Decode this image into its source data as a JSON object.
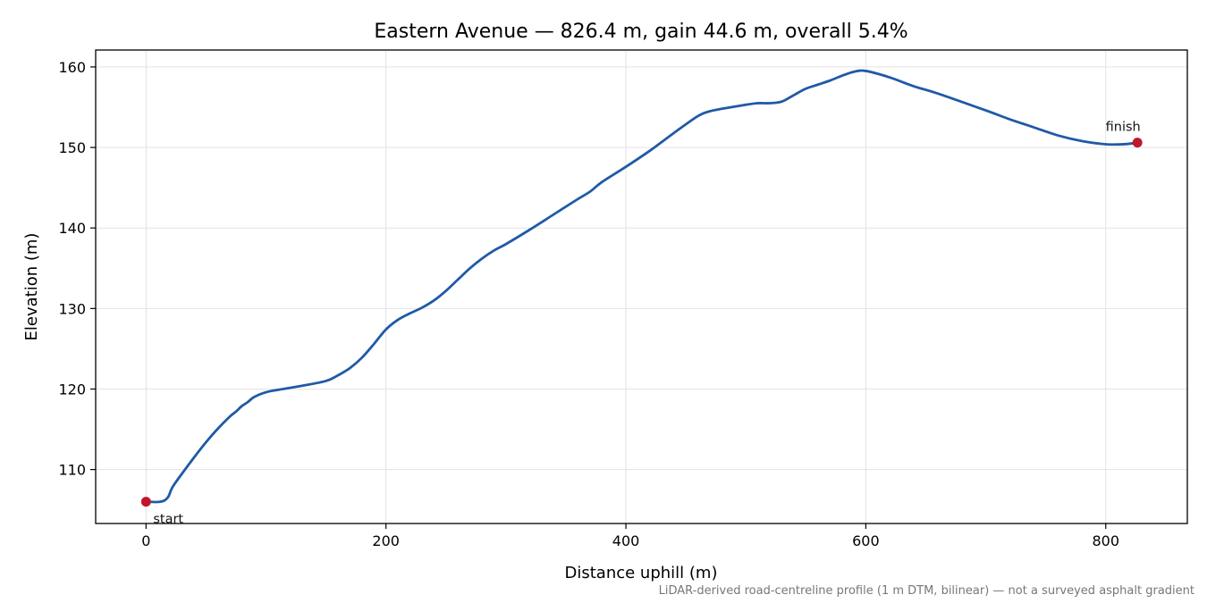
{
  "chart_data": {
    "type": "line",
    "title": "Eastern Avenue — 826.4 m, gain 44.6 m, overall 5.4%",
    "xlabel": "Distance uphill (m)",
    "ylabel": "Elevation (m)",
    "xlim": [
      -42,
      868
    ],
    "ylim": [
      103.3,
      162.1
    ],
    "xticks": [
      0,
      200,
      400,
      600,
      800
    ],
    "yticks": [
      110,
      120,
      130,
      140,
      150,
      160
    ],
    "grid": true,
    "line_color": "#1f5aa6",
    "marker_color": "#c0172b",
    "series": [
      {
        "x": [
          0,
          12,
          18,
          22,
          30,
          40,
          50,
          60,
          70,
          75,
          80,
          85,
          90,
          100,
          110,
          130,
          150,
          160,
          170,
          180,
          190,
          200,
          210,
          220,
          230,
          240,
          250,
          260,
          270,
          280,
          290,
          300,
          320,
          340,
          360,
          370,
          380,
          400,
          420,
          440,
          460,
          470,
          480,
          500,
          510,
          520,
          530,
          540,
          550,
          560,
          570,
          580,
          590,
          600,
          620,
          640,
          660,
          700,
          720,
          740,
          760,
          780,
          800,
          815,
          826.4
        ],
        "y": [
          106,
          106,
          106.5,
          107.8,
          109.5,
          111.5,
          113.4,
          115.1,
          116.6,
          117.2,
          117.9,
          118.4,
          119.0,
          119.6,
          119.9,
          120.4,
          121.0,
          121.7,
          122.6,
          123.9,
          125.6,
          127.4,
          128.6,
          129.4,
          130.1,
          131.0,
          132.2,
          133.6,
          135.0,
          136.2,
          137.2,
          138.0,
          139.8,
          141.7,
          143.6,
          144.5,
          145.7,
          147.6,
          149.6,
          151.8,
          153.9,
          154.5,
          154.8,
          155.3,
          155.5,
          155.5,
          155.7,
          156.5,
          157.3,
          157.8,
          158.3,
          158.9,
          159.4,
          159.5,
          158.7,
          157.6,
          156.7,
          154.6,
          153.5,
          152.5,
          151.5,
          150.8,
          150.4,
          150.4,
          150.6
        ]
      }
    ],
    "points": [
      {
        "label": "start",
        "x": 0,
        "y": 106,
        "label_position": "below-right"
      },
      {
        "label": "finish",
        "x": 826.4,
        "y": 150.6,
        "label_position": "above-left"
      }
    ],
    "footnote": "LiDAR-derived road-centreline profile (1 m DTM, bilinear) — not a surveyed asphalt gradient"
  }
}
